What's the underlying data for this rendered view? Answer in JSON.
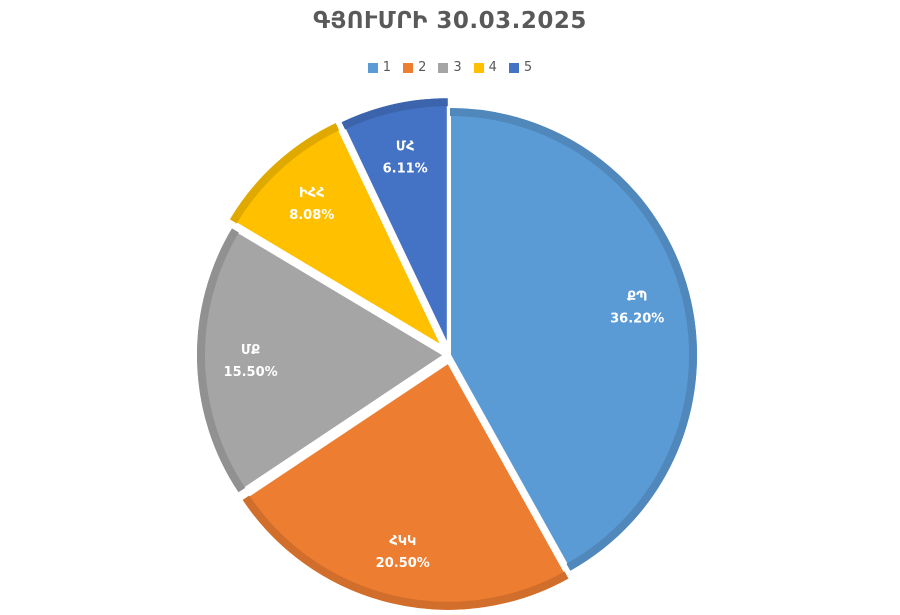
{
  "chart_data": {
    "type": "pie",
    "title": "ԳՅՈՒՄՐԻ 30.03.2025",
    "legend_position": "top",
    "slices": [
      {
        "legend": "1",
        "label": "ՔՊ",
        "value_text": "36.20%",
        "value": 36.2,
        "color": "#5B9BD5"
      },
      {
        "legend": "2",
        "label": "ՀԿԿ",
        "value_text": "20.50%",
        "value": 20.5,
        "color": "#ED7D31"
      },
      {
        "legend": "3",
        "label": "ՄՔ",
        "value_text": "15.50%",
        "value": 15.5,
        "color": "#A5A5A5"
      },
      {
        "legend": "4",
        "label": "ԻՀՀ",
        "value_text": "8.08%",
        "value": 8.08,
        "color": "#FFC000"
      },
      {
        "legend": "5",
        "label": "ՄՀ",
        "value_text": "6.11%",
        "value": 6.11,
        "color": "#4472C4"
      }
    ]
  }
}
